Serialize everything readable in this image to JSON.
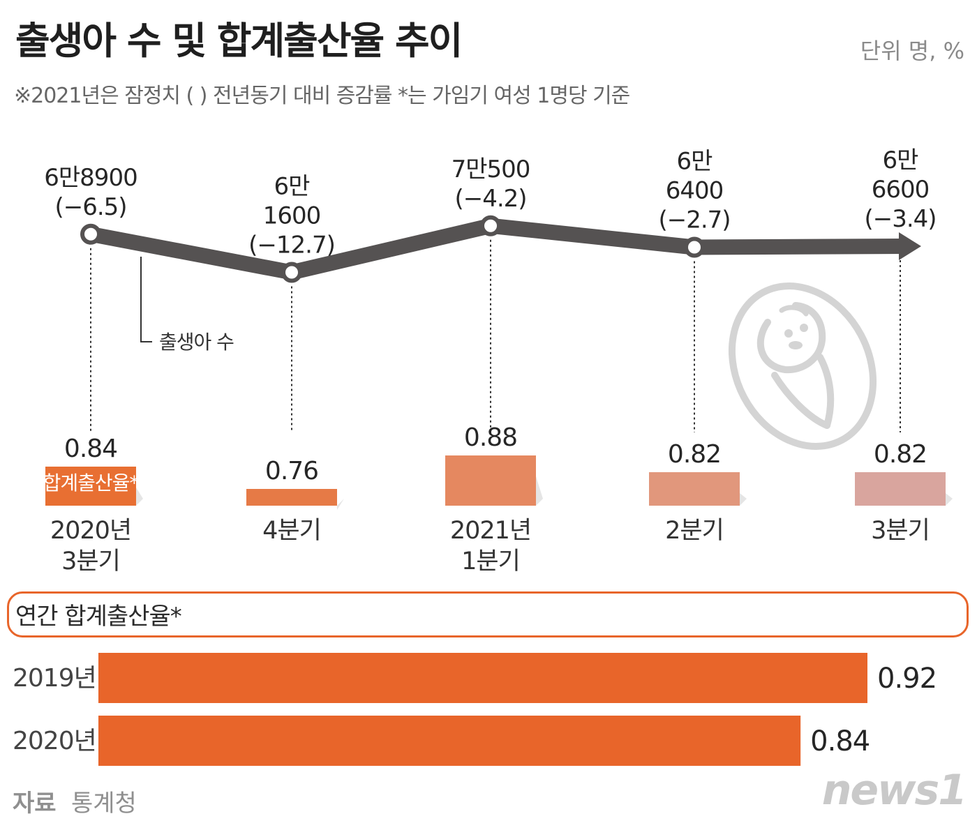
{
  "header": {
    "title": "출생아 수 및 합계출산율 추이",
    "unit": "단위 명, %",
    "note": "※2021년은 잠정치 ( ) 전년동기 대비 증감률  *는 가임기 여성 1명당 기준"
  },
  "colors": {
    "line": "#555252",
    "bar_accent": "#e8652a",
    "bar_gradient": [
      "#e86f32",
      "#e67a46",
      "#e58860",
      "#e1977c",
      "#d9a59e"
    ]
  },
  "icons": {
    "illustration": "baby-swaddle-icon"
  },
  "callout": "출생아 수",
  "legend_tag": "합계출산율*",
  "chart_data": [
    {
      "type": "line",
      "series": [
        {
          "name": "출생아 수"
        }
      ],
      "points": [
        {
          "period": [
            "2020년",
            "3분기"
          ],
          "value": 68900,
          "label_lines": [
            "6만8900",
            "(−6.5)"
          ],
          "change": -6.5
        },
        {
          "period": [
            "4분기"
          ],
          "value": 61600,
          "label_lines": [
            "6만",
            "1600",
            "(−12.7)"
          ],
          "change": -12.7
        },
        {
          "period": [
            "2021년",
            "1분기"
          ],
          "value": 70500,
          "label_lines": [
            "7만500",
            "(−4.2)"
          ],
          "change": -4.2
        },
        {
          "period": [
            "2분기"
          ],
          "value": 66400,
          "label_lines": [
            "6만",
            "6400",
            "(−2.7)"
          ],
          "change": -2.7
        },
        {
          "period": [
            "3분기"
          ],
          "value": 66600,
          "label_lines": [
            "6만",
            "6600",
            "(−3.4)"
          ],
          "change": -3.4
        }
      ],
      "ylim": [
        55000,
        75000
      ]
    },
    {
      "type": "bar",
      "series": [
        {
          "name": "합계출산율*"
        }
      ],
      "categories": [
        "2020년 3분기",
        "4분기",
        "2021년 1분기",
        "2분기",
        "3분기"
      ],
      "values": [
        0.84,
        0.76,
        0.88,
        0.82,
        0.82
      ],
      "value_labels": [
        "0.84",
        "0.76",
        "0.88",
        "0.82",
        "0.82"
      ]
    },
    {
      "type": "bar",
      "orientation": "horizontal",
      "title": "연간 합계출산율*",
      "categories": [
        "2019년",
        "2020년"
      ],
      "values": [
        0.92,
        0.84
      ],
      "value_labels": [
        "0.92",
        "0.84"
      ],
      "xlim": [
        0,
        1.0
      ]
    }
  ],
  "footer": {
    "source_label": "자료",
    "source_value": "통계청",
    "logo": "news1"
  }
}
